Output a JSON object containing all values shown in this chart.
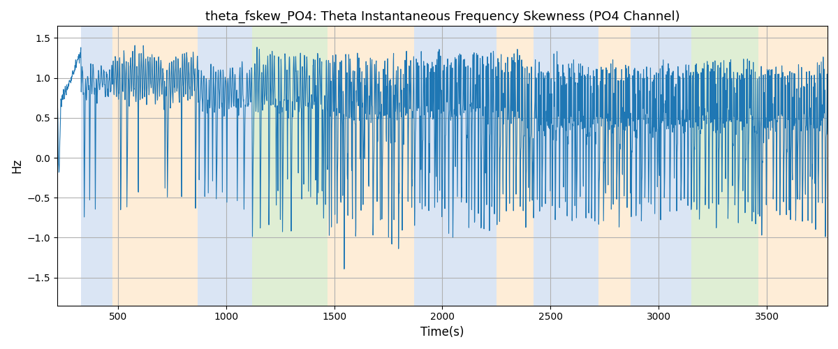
{
  "title": "theta_fskew_PO4: Theta Instantaneous Frequency Skewness (PO4 Channel)",
  "xlabel": "Time(s)",
  "ylabel": "Hz",
  "xlim": [
    220,
    3780
  ],
  "ylim": [
    -1.85,
    1.65
  ],
  "yticks": [
    -1.5,
    -1.0,
    -0.5,
    0.0,
    0.5,
    1.0,
    1.5
  ],
  "xticks": [
    500,
    1000,
    1500,
    2000,
    2500,
    3000,
    3500
  ],
  "line_color": "#1f77b4",
  "line_width": 0.8,
  "bg_color": "#ffffff",
  "grid_color": "#b0b0b0",
  "bands": [
    {
      "start": 330,
      "end": 475,
      "color": "#aec6e8",
      "alpha": 0.45
    },
    {
      "start": 475,
      "end": 870,
      "color": "#fdd9a8",
      "alpha": 0.45
    },
    {
      "start": 870,
      "end": 1120,
      "color": "#aec6e8",
      "alpha": 0.45
    },
    {
      "start": 1120,
      "end": 1470,
      "color": "#b8dba0",
      "alpha": 0.45
    },
    {
      "start": 1470,
      "end": 1870,
      "color": "#fdd9a8",
      "alpha": 0.45
    },
    {
      "start": 1870,
      "end": 2250,
      "color": "#aec6e8",
      "alpha": 0.45
    },
    {
      "start": 2250,
      "end": 2420,
      "color": "#fdd9a8",
      "alpha": 0.45
    },
    {
      "start": 2420,
      "end": 2720,
      "color": "#aec6e8",
      "alpha": 0.45
    },
    {
      "start": 2720,
      "end": 2870,
      "color": "#fdd9a8",
      "alpha": 0.45
    },
    {
      "start": 2870,
      "end": 3150,
      "color": "#aec6e8",
      "alpha": 0.45
    },
    {
      "start": 3150,
      "end": 3460,
      "color": "#b8dba0",
      "alpha": 0.45
    },
    {
      "start": 3460,
      "end": 3780,
      "color": "#fdd9a8",
      "alpha": 0.45
    }
  ],
  "figsize": [
    12.0,
    5.0
  ],
  "dpi": 100
}
